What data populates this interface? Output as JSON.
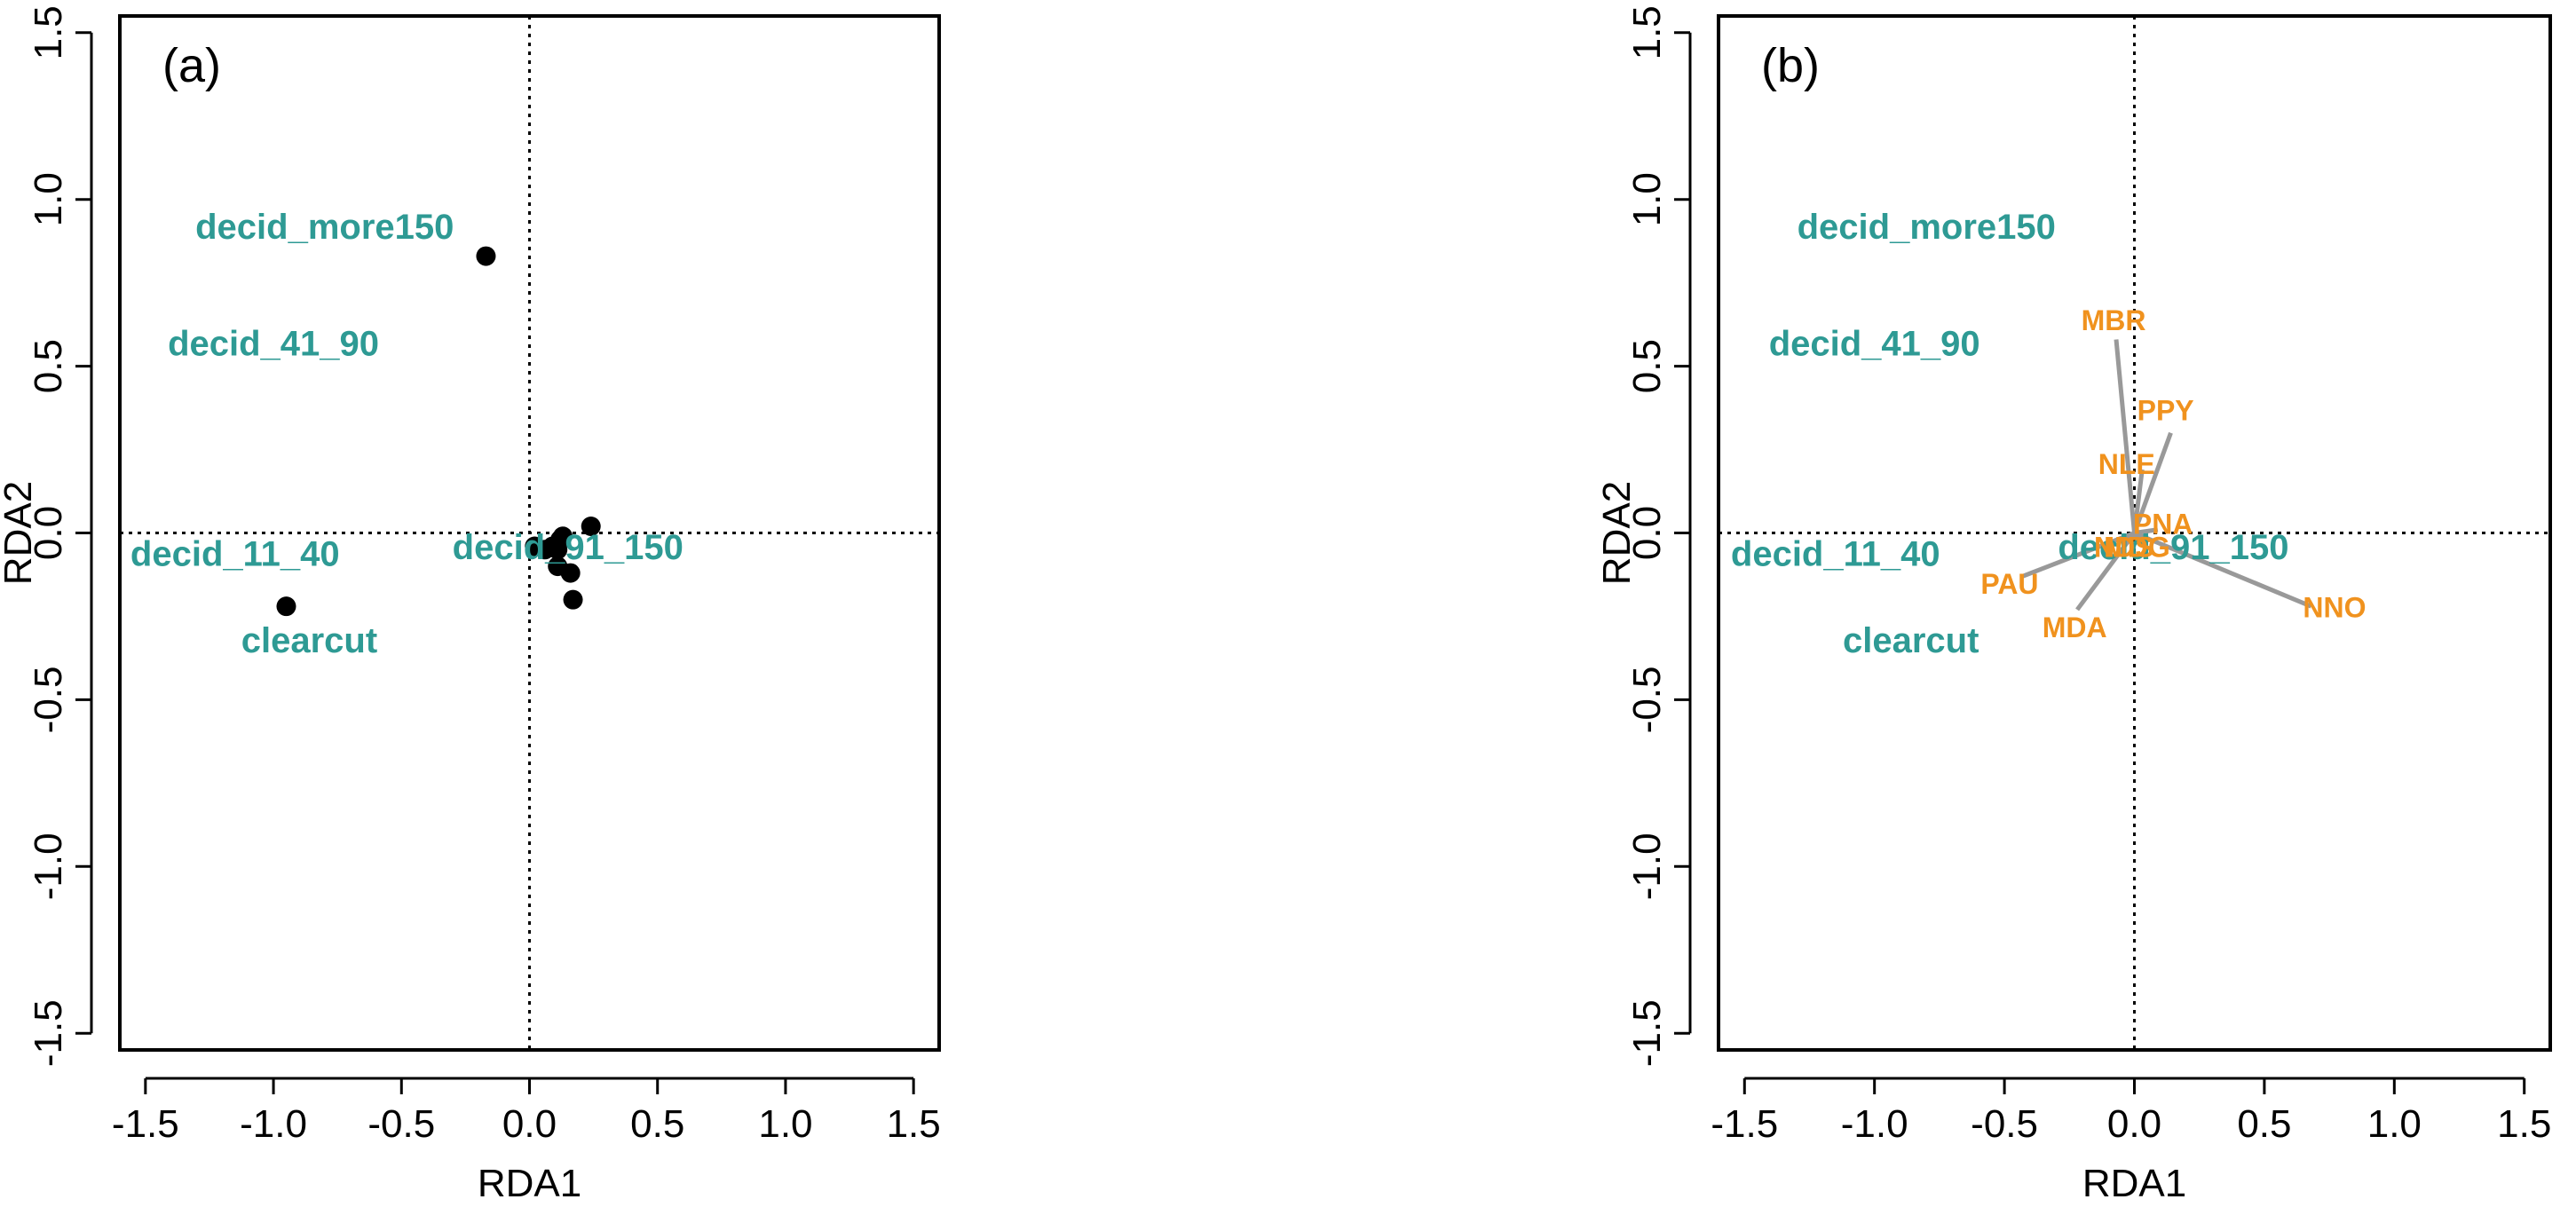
{
  "colors": {
    "site_label": "#2E9A94",
    "species_label": "#F0921E",
    "arrow": "#999999",
    "point": "#000000",
    "axis": "#000000"
  },
  "chart_data": [
    {
      "type": "scatter",
      "panel_label": "(a)",
      "xlabel": "RDA1",
      "ylabel": "RDA2",
      "xlim": [
        -1.6,
        1.6
      ],
      "ylim": [
        -1.55,
        1.55
      ],
      "xticks": [
        -1.5,
        -1.0,
        -0.5,
        0.0,
        0.5,
        1.0,
        1.5
      ],
      "xtick_labels": [
        "-1.5",
        "-1.0",
        "-0.5",
        "0.0",
        "0.5",
        "1.0",
        "1.5"
      ],
      "yticks": [
        -1.5,
        -1.0,
        -0.5,
        0.0,
        0.5,
        1.0,
        1.5
      ],
      "ytick_labels": [
        "-1.5",
        "-1.0",
        "-0.5",
        "0.0",
        "0.5",
        "1.0",
        "1.5"
      ],
      "reference_lines": {
        "x": 0,
        "y": 0,
        "style": "dotted"
      },
      "points": [
        {
          "x": -0.17,
          "y": 0.83
        },
        {
          "x": -0.95,
          "y": -0.22
        },
        {
          "x": 0.02,
          "y": -0.04
        },
        {
          "x": 0.06,
          "y": -0.05
        },
        {
          "x": 0.09,
          "y": -0.04
        },
        {
          "x": 0.11,
          "y": -0.05
        },
        {
          "x": 0.12,
          "y": -0.02
        },
        {
          "x": 0.13,
          "y": -0.01
        },
        {
          "x": 0.11,
          "y": -0.1
        },
        {
          "x": 0.16,
          "y": -0.12
        },
        {
          "x": 0.17,
          "y": -0.2
        },
        {
          "x": 0.24,
          "y": 0.02
        }
      ],
      "site_labels": [
        {
          "text": "decid_more150",
          "x": -0.8,
          "y": 0.91
        },
        {
          "text": "decid_41_90",
          "x": -1.0,
          "y": 0.56
        },
        {
          "text": "decid_11_40",
          "x": -1.15,
          "y": -0.07
        },
        {
          "text": "decid_91_150",
          "x": 0.15,
          "y": -0.05
        },
        {
          "text": "clearcut",
          "x": -0.86,
          "y": -0.33
        }
      ]
    },
    {
      "type": "scatter",
      "panel_label": "(b)",
      "xlabel": "RDA1",
      "ylabel": "RDA2",
      "xlim": [
        -1.6,
        1.6
      ],
      "ylim": [
        -1.55,
        1.55
      ],
      "xticks": [
        -1.5,
        -1.0,
        -0.5,
        0.0,
        0.5,
        1.0,
        1.5
      ],
      "xtick_labels": [
        "-1.5",
        "-1.0",
        "-0.5",
        "0.0",
        "0.5",
        "1.0",
        "1.5"
      ],
      "yticks": [
        -1.5,
        -1.0,
        -0.5,
        0.0,
        0.5,
        1.0,
        1.5
      ],
      "ytick_labels": [
        "-1.5",
        "-1.0",
        "-0.5",
        "0.0",
        "0.5",
        "1.0",
        "1.5"
      ],
      "reference_lines": {
        "x": 0,
        "y": 0,
        "style": "dotted"
      },
      "site_labels": [
        {
          "text": "decid_more150",
          "x": -0.8,
          "y": 0.91
        },
        {
          "text": "decid_41_90",
          "x": -1.0,
          "y": 0.56
        },
        {
          "text": "decid_11_40",
          "x": -1.15,
          "y": -0.07
        },
        {
          "text": "decid_91_150",
          "x": 0.15,
          "y": -0.05
        },
        {
          "text": "clearcut",
          "x": -0.86,
          "y": -0.33
        }
      ],
      "species_arrows": [
        {
          "label": "MBR",
          "x": -0.07,
          "y": 0.58,
          "label_x": -0.08,
          "label_y": 0.63
        },
        {
          "label": "PPY",
          "x": 0.14,
          "y": 0.3,
          "label_x": 0.12,
          "label_y": 0.36
        },
        {
          "label": "NLE",
          "x": 0.03,
          "y": 0.19,
          "label_x": -0.03,
          "label_y": 0.2
        },
        {
          "label": "PNA",
          "x": 0.09,
          "y": 0.01,
          "label_x": 0.11,
          "label_y": 0.02
        },
        {
          "label": "NNO",
          "x": 0.68,
          "y": -0.22,
          "label_x": 0.77,
          "label_y": -0.23
        },
        {
          "label": "PAU",
          "x": -0.43,
          "y": -0.13,
          "label_x": -0.48,
          "label_y": -0.16
        },
        {
          "label": "MDA",
          "x": -0.22,
          "y": -0.23,
          "label_x": -0.23,
          "label_y": -0.29
        },
        {
          "label": "NDS",
          "x": 0.01,
          "y": -0.02,
          "label_x": -0.04,
          "label_y": -0.05
        },
        {
          "label": "MDG",
          "x": 0.04,
          "y": -0.02,
          "label_x": 0.01,
          "label_y": -0.05
        }
      ]
    }
  ]
}
